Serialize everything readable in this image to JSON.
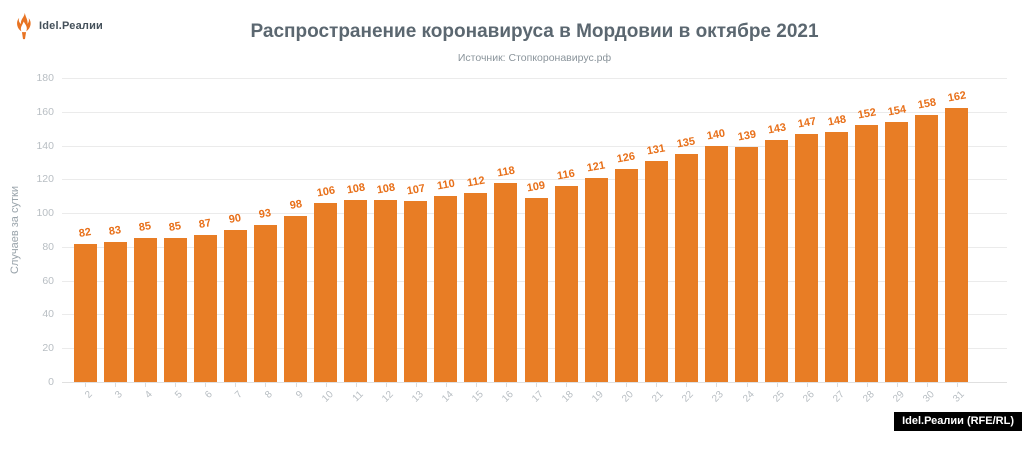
{
  "header": {
    "logo_text": "Idel.Реалии",
    "title": "Распространение коронавируса в Мордовии в октябре 2021",
    "subtitle": "Источник: Стопкоронавирус.рф"
  },
  "footer": {
    "credit": "Idel.Реалии (RFE/RL)"
  },
  "colors": {
    "bar": "#e87d25",
    "bar_label": "#e8701a",
    "logo_flame": "#e87322",
    "title_text": "#5b6770",
    "subtitle_text": "#8a949b",
    "axis_text": "#b8bec3",
    "gridline": "#ebebeb",
    "credit_bg": "#000000",
    "credit_text": "#ffffff"
  },
  "chart_data": {
    "type": "bar",
    "title": "Распространение коронавируса в Мордовии в октябре 2021",
    "subtitle": "Источник: Стопкоронавирус.рф",
    "xlabel": "",
    "ylabel": "Случаев за сутки",
    "ylim": [
      0,
      180
    ],
    "yticks": [
      0,
      20,
      40,
      60,
      80,
      100,
      120,
      140,
      160,
      180
    ],
    "grid": true,
    "legend": false,
    "bar_color": "#e87d25",
    "data_labels": true,
    "categories": [
      "2",
      "3",
      "4",
      "5",
      "6",
      "7",
      "8",
      "9",
      "10",
      "11",
      "12",
      "13",
      "14",
      "15",
      "16",
      "17",
      "18",
      "19",
      "20",
      "21",
      "22",
      "23",
      "24",
      "25",
      "26",
      "27",
      "28",
      "29",
      "30",
      "31"
    ],
    "values": [
      82,
      83,
      85,
      85,
      87,
      90,
      93,
      98,
      106,
      108,
      108,
      107,
      110,
      112,
      118,
      109,
      116,
      121,
      126,
      131,
      135,
      140,
      139,
      143,
      147,
      148,
      152,
      154,
      158,
      162
    ]
  }
}
